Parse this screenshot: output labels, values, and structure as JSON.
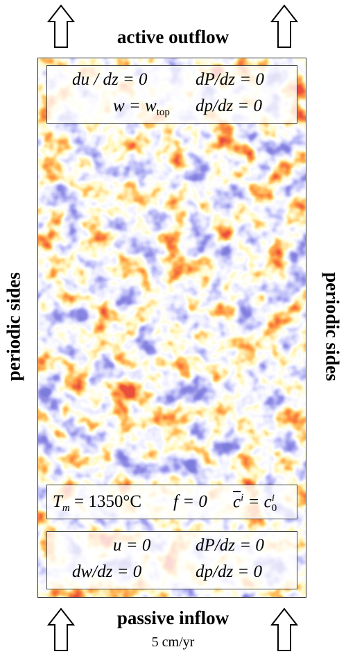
{
  "top_label": "active outflow",
  "bottom_label": "passive inflow",
  "bottom_sublabel": "5 cm/yr",
  "left_label": "periodic sides",
  "right_label": "periodic sides",
  "top_bc": {
    "row1_left": {
      "main": "du / dz = 0"
    },
    "row1_right": {
      "main": "dP/dz = 0"
    },
    "row2_left": {
      "pre": "w = w",
      "sub": "top"
    },
    "row2_right": {
      "main": "dp/dz = 0"
    }
  },
  "mid_bc": {
    "t_sym": "T",
    "t_sub": "m",
    "t_val": " = 1350°C",
    "f_eq": "f = 0",
    "c_bar": "c",
    "c_sup": "i",
    "c_mid": " = c",
    "c_sub": "0",
    "c_sup2": "i"
  },
  "bottom_bc": {
    "row1_left": {
      "main": "u = 0"
    },
    "row1_right": {
      "main": "dP/dz = 0"
    },
    "row2_left": {
      "main": "dw/dz = 0"
    },
    "row2_right": {
      "main": "dp/dz = 0"
    }
  },
  "colors": {
    "red": "#c81e12",
    "orange": "#f07a16",
    "yellow": "#ffe65a",
    "blue": "#4040c8",
    "light_blue": "#b8c0f0"
  },
  "icons": {
    "arrow": "hollow-up-arrow-icon"
  }
}
